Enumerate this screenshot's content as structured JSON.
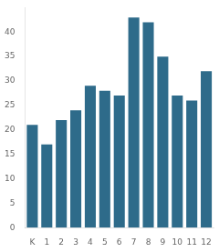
{
  "chart_data": {
    "type": "bar",
    "categories": [
      "K",
      "1",
      "2",
      "3",
      "4",
      "5",
      "6",
      "7",
      "8",
      "9",
      "10",
      "11",
      "12"
    ],
    "values": [
      21,
      17,
      22,
      24,
      29,
      28,
      27,
      43,
      42,
      35,
      27,
      26,
      32
    ],
    "color": "#2e6b8a",
    "ylim": [
      0,
      45
    ],
    "yticks": [
      0,
      5,
      10,
      15,
      20,
      25,
      30,
      35,
      40
    ],
    "grid": false
  }
}
